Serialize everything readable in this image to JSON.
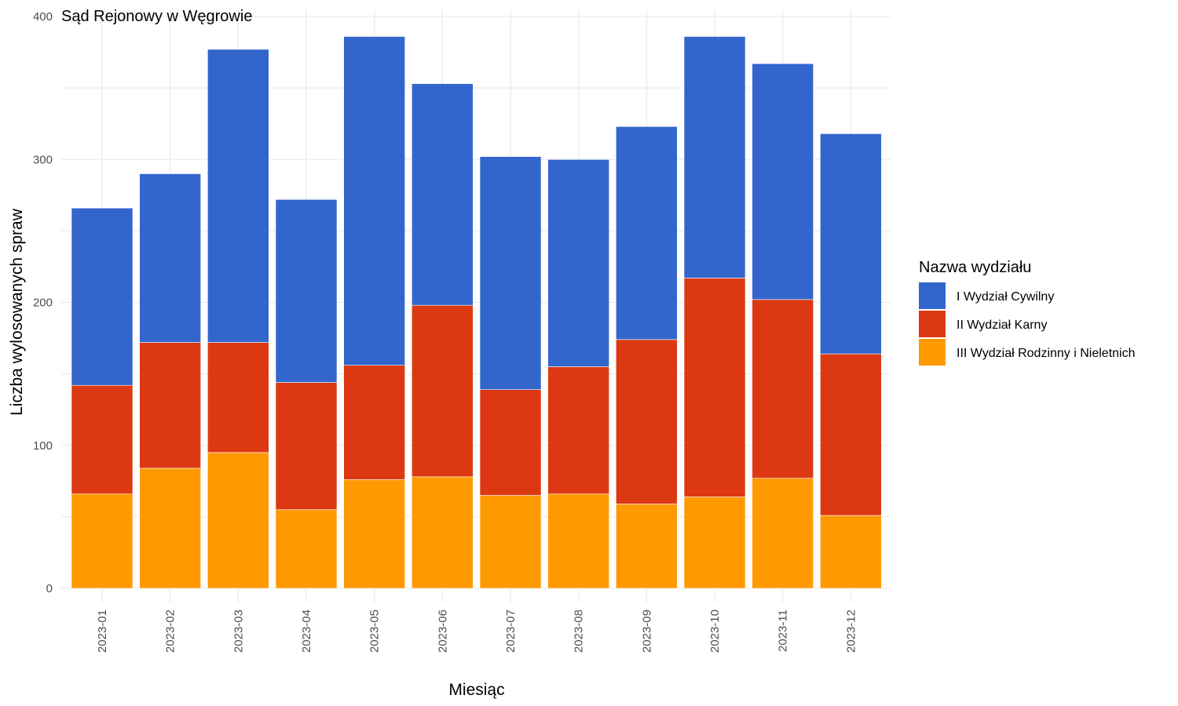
{
  "chart_data": {
    "type": "bar",
    "stacked": true,
    "title": "Sąd Rejonowy w Węgrowie",
    "xlabel": "Miesiąc",
    "ylabel": "Liczba wylosowanych spraw",
    "ylim": [
      0,
      400
    ],
    "yticks": [
      0,
      100,
      200,
      300,
      400
    ],
    "grid": true,
    "legend_title": "Nazwa wydziału",
    "legend_position": "right",
    "categories": [
      "2023-01",
      "2023-02",
      "2023-03",
      "2023-04",
      "2023-05",
      "2023-06",
      "2023-07",
      "2023-08",
      "2023-09",
      "2023-10",
      "2023-11",
      "2023-12"
    ],
    "series": [
      {
        "name": "I Wydział Cywilny",
        "color": "#3366cc",
        "values": [
          124,
          118,
          205,
          128,
          230,
          155,
          163,
          145,
          149,
          169,
          165,
          154
        ]
      },
      {
        "name": "II Wydział Karny",
        "color": "#dc3912",
        "values": [
          76,
          88,
          77,
          89,
          80,
          120,
          74,
          89,
          115,
          153,
          125,
          113
        ]
      },
      {
        "name": "III Wydział Rodzinny i Nieletnich",
        "color": "#ff9900",
        "values": [
          66,
          84,
          95,
          55,
          76,
          78,
          65,
          66,
          59,
          64,
          77,
          51
        ]
      }
    ]
  }
}
